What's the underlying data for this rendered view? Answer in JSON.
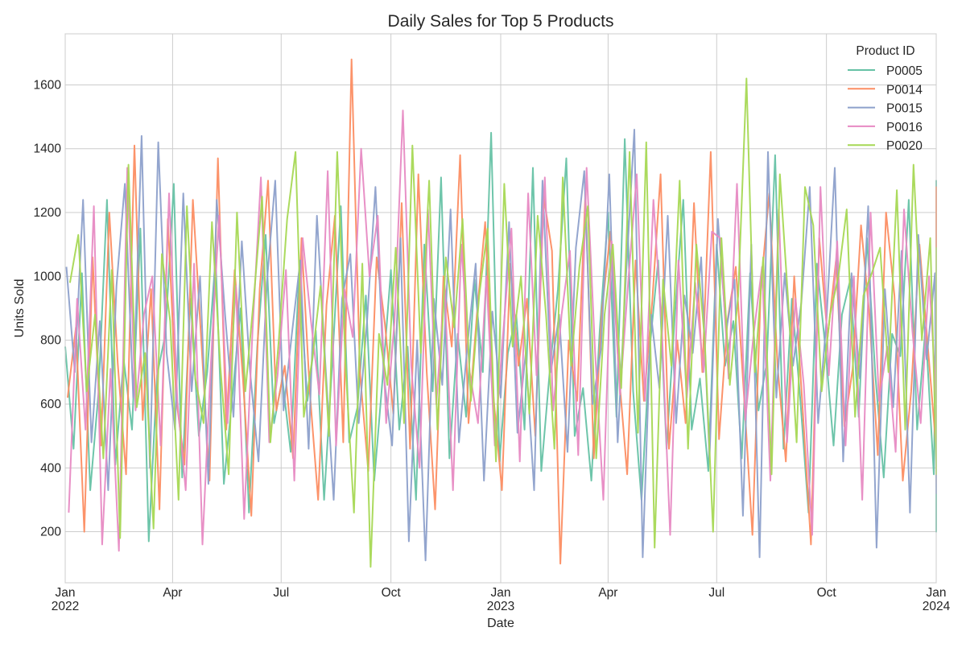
{
  "chart_data": {
    "type": "line",
    "title": "Daily Sales for Top 5 Products",
    "xlabel": "Date",
    "ylabel": "Units Sold",
    "xlim": [
      "2022-01-01",
      "2024-01-01"
    ],
    "ylim": [
      40,
      1760
    ],
    "grid": true,
    "legend": {
      "title": "Product ID",
      "placement": "top-right"
    },
    "x_ticks": [
      {
        "date": "2022-01-01",
        "label": "Jan",
        "sublabel": "2022"
      },
      {
        "date": "2022-04-01",
        "label": "Apr",
        "sublabel": ""
      },
      {
        "date": "2022-07-01",
        "label": "Jul",
        "sublabel": ""
      },
      {
        "date": "2022-10-01",
        "label": "Oct",
        "sublabel": ""
      },
      {
        "date": "2023-01-01",
        "label": "Jan",
        "sublabel": "2023"
      },
      {
        "date": "2023-04-01",
        "label": "Apr",
        "sublabel": ""
      },
      {
        "date": "2023-07-01",
        "label": "Jul",
        "sublabel": ""
      },
      {
        "date": "2023-10-01",
        "label": "Oct",
        "sublabel": ""
      },
      {
        "date": "2024-01-01",
        "label": "Jan",
        "sublabel": "2024"
      }
    ],
    "y_ticks": [
      200,
      400,
      600,
      800,
      1000,
      1200,
      1400,
      1600
    ],
    "series": [
      {
        "name": "P0005",
        "color": "#66c2a5",
        "x_start": "2022-01-01",
        "x_step_days": 7,
        "values": [
          780,
          460,
          1010,
          330,
          640,
          1240,
          410,
          740,
          520,
          1150,
          170,
          690,
          820,
          1290,
          370,
          930,
          500,
          700,
          1060,
          350,
          620,
          900,
          260,
          780,
          1130,
          540,
          680,
          450,
          1010,
          610,
          830,
          300,
          740,
          1220,
          480,
          590,
          940,
          360,
          680,
          1020,
          520,
          780,
          300,
          1100,
          640,
          1310,
          430,
          820,
          560,
          990,
          700,
          1450,
          420,
          760,
          880,
          520,
          1340,
          390,
          700,
          960,
          1370,
          500,
          650,
          360,
          830,
          1200,
          560,
          1430,
          640,
          300,
          780,
          1050,
          460,
          880,
          1240,
          520,
          680,
          390,
          1100,
          720,
          860,
          430,
          1010,
          580,
          730,
          1380,
          460,
          930,
          620,
          260,
          1040,
          780,
          470,
          880,
          990,
          560,
          1120,
          690,
          370,
          820,
          750,
          1240,
          520,
          840,
          380,
          910,
          200,
          760,
          1300,
          620
        ]
      },
      {
        "name": "P0014",
        "color": "#fc8d62",
        "x_start": "2022-01-03",
        "x_step_days": 7,
        "values": [
          620,
          840,
          200,
          1060,
          470,
          1200,
          730,
          380,
          1410,
          550,
          960,
          270,
          1180,
          620,
          410,
          1240,
          800,
          360,
          1370,
          520,
          1020,
          680,
          250,
          960,
          1300,
          580,
          720,
          430,
          1120,
          640,
          300,
          910,
          1190,
          480,
          1680,
          700,
          390,
          1060,
          850,
          570,
          1230,
          460,
          1320,
          700,
          270,
          1000,
          780,
          1380,
          540,
          880,
          1170,
          620,
          330,
          1040,
          720,
          930,
          500,
          1250,
          1080,
          100,
          800,
          610,
          1260,
          430,
          900,
          1140,
          700,
          380,
          1050,
          610,
          920,
          1320,
          460,
          800,
          540,
          1230,
          700,
          1390,
          490,
          860,
          1030,
          620,
          190,
          960,
          1260,
          720,
          420,
          1000,
          590,
          160,
          1120,
          810,
          1050,
          530,
          710,
          1160,
          880,
          440,
          1200,
          940,
          360,
          640,
          1100,
          780,
          460,
          1280,
          590,
          350
        ]
      },
      {
        "name": "P0015",
        "color": "#8da0cb",
        "x_start": "2022-01-02",
        "x_step_days": 7,
        "values": [
          1030,
          700,
          1240,
          480,
          860,
          330,
          970,
          1290,
          620,
          1440,
          400,
          1420,
          760,
          520,
          1260,
          640,
          1000,
          350,
          1240,
          880,
          560,
          1110,
          700,
          420,
          980,
          1300,
          580,
          820,
          1050,
          460,
          1190,
          730,
          300,
          930,
          1070,
          540,
          860,
          1280,
          690,
          470,
          1120,
          170,
          800,
          110,
          930,
          660,
          1210,
          480,
          780,
          1040,
          360,
          890,
          620,
          1170,
          510,
          760,
          330,
          1300,
          700,
          880,
          450,
          1090,
          1330,
          600,
          770,
          1320,
          480,
          1000,
          1460,
          120,
          880,
          650,
          1190,
          540,
          940,
          760,
          1060,
          430,
          1180,
          830,
          990,
          250,
          1100,
          120,
          1390,
          620,
          1010,
          720,
          920,
          1280,
          540,
          860,
          1340,
          420,
          1010,
          680,
          1220,
          150,
          960,
          590,
          1080,
          260,
          1130,
          740,
          1010,
          320,
          980,
          1030
        ]
      },
      {
        "name": "P0016",
        "color": "#e78ac3",
        "x_start": "2022-01-04",
        "x_step_days": 7,
        "values": [
          260,
          930,
          520,
          1220,
          160,
          710,
          140,
          1340,
          580,
          880,
          1000,
          470,
          1260,
          610,
          330,
          1040,
          160,
          720,
          1190,
          540,
          970,
          240,
          830,
          1310,
          480,
          690,
          1020,
          360,
          1120,
          860,
          630,
          1330,
          470,
          960,
          810,
          1400,
          1000,
          1190,
          540,
          860,
          1520,
          720,
          400,
          1210,
          600,
          970,
          330,
          1100,
          700,
          540,
          1000,
          470,
          820,
          1150,
          420,
          1260,
          690,
          1310,
          580,
          880,
          1080,
          440,
          1340,
          770,
          300,
          1110,
          630,
          990,
          1320,
          610,
          1240,
          840,
          190,
          1050,
          620,
          980,
          700,
          1140,
          1120,
          680,
          1290,
          550,
          820,
          1030,
          360,
          1210,
          480,
          930,
          660,
          190,
          1280,
          690,
          1110,
          470,
          1000,
          300,
          1200,
          610,
          780,
          450,
          1210,
          830,
          540,
          1000,
          620,
          380,
          920,
          470
        ]
      },
      {
        "name": "P0020",
        "color": "#a6d854",
        "x_start": "2022-01-05",
        "x_step_days": 7,
        "values": [
          980,
          1130,
          640,
          880,
          430,
          1020,
          180,
          1350,
          590,
          760,
          210,
          1070,
          860,
          300,
          1220,
          680,
          540,
          1170,
          720,
          380,
          1200,
          640,
          930,
          1250,
          480,
          800,
          1180,
          1390,
          560,
          740,
          970,
          500,
          1390,
          720,
          260,
          1040,
          90,
          820,
          660,
          1090,
          540,
          1410,
          760,
          1300,
          520,
          1060,
          840,
          1180,
          610,
          940,
          1150,
          420,
          1290,
          780,
          1000,
          570,
          1190,
          880,
          460,
          1310,
          720,
          1030,
          1220,
          430,
          880,
          1100,
          650,
          1390,
          510,
          1420,
          150,
          990,
          720,
          1300,
          460,
          1100,
          800,
          200,
          1120,
          660,
          940,
          1620,
          700,
          1060,
          380,
          1320,
          920,
          480,
          1280,
          1160,
          640,
          880,
          1000,
          1210,
          560,
          940,
          1010,
          1090,
          700,
          1270,
          520,
          1350,
          800,
          1120,
          420,
          1090,
          380,
          760
        ]
      }
    ]
  }
}
